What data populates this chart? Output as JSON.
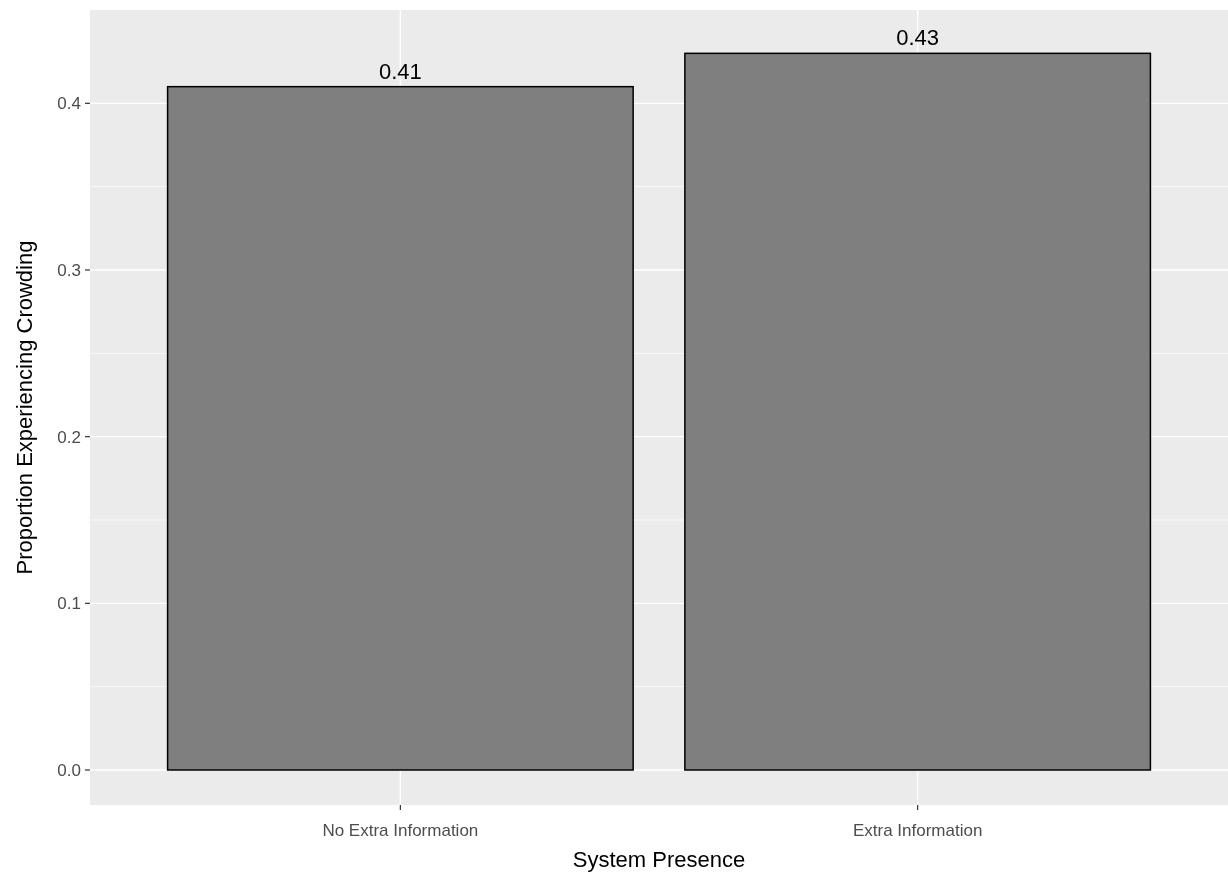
{
  "chart_data": {
    "type": "bar",
    "xlabel": "System Presence",
    "ylabel": "Proportion Experiencing Crowding",
    "categories": [
      "No Extra Information",
      "Extra Information"
    ],
    "values": [
      0.41,
      0.43
    ],
    "color": "#7f7f7f",
    "ylim": [
      -0.021,
      0.456
    ],
    "yticks": [
      {
        "value": 0,
        "label": "0.0"
      },
      {
        "value": 0.1,
        "label": "0.1"
      },
      {
        "value": 0.2,
        "label": "0.2"
      },
      {
        "value": 0.3,
        "label": "0.3"
      },
      {
        "value": 0.4,
        "label": "0.4"
      }
    ],
    "grid": true,
    "data_labels": true
  }
}
